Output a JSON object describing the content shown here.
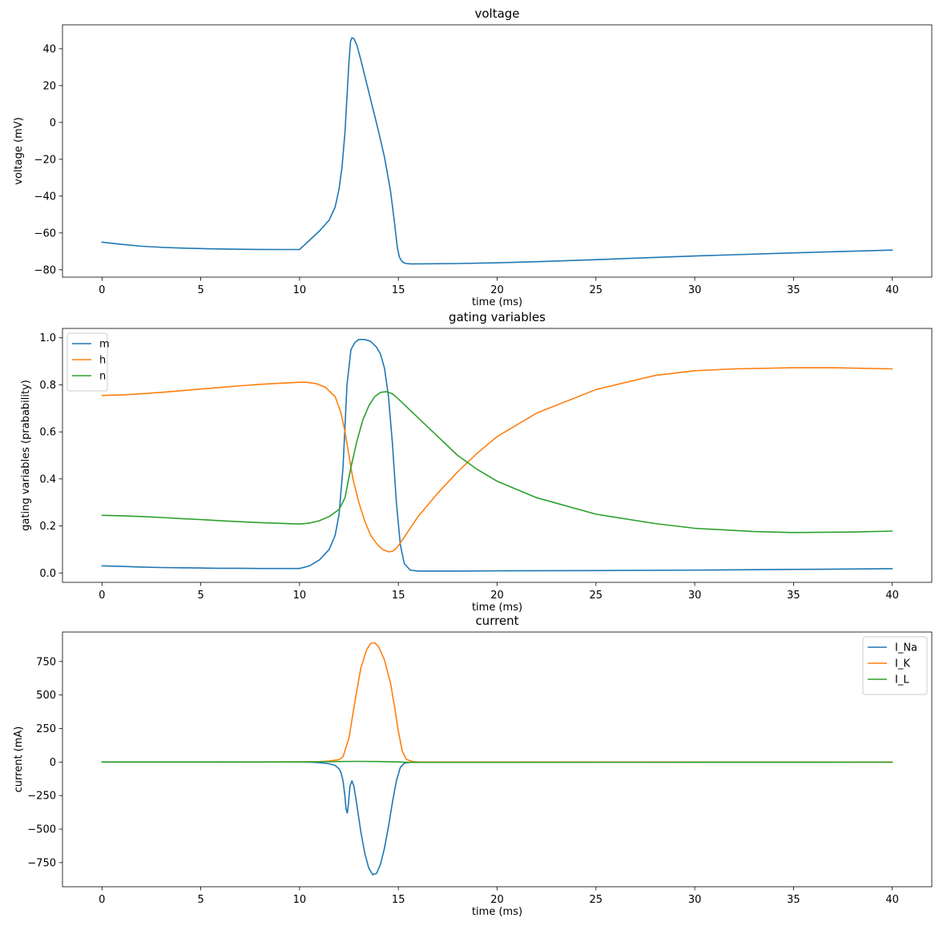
{
  "colors": {
    "blue": "#1f77b4",
    "orange": "#ff7f0e",
    "green": "#2ca02c"
  },
  "chart_data": [
    {
      "type": "line",
      "title": "voltage",
      "xlabel": "time (ms)",
      "ylabel": "voltage (mV)",
      "xlim": [
        -2,
        42
      ],
      "ylim": [
        -84,
        53
      ],
      "xticks": [
        0,
        5,
        10,
        15,
        20,
        25,
        30,
        35,
        40
      ],
      "xtick_labels": [
        "0",
        "5",
        "10",
        "15",
        "20",
        "25",
        "30",
        "35",
        "40"
      ],
      "yticks": [
        -80,
        -60,
        -40,
        -20,
        0,
        20,
        40
      ],
      "ytick_labels": [
        "−80",
        "−60",
        "−40",
        "−20",
        "0",
        "20",
        "40"
      ],
      "legend": null,
      "series": [
        {
          "color": "#1f77b4",
          "x": [
            0,
            1,
            2,
            3,
            4,
            5,
            6,
            7,
            8,
            9,
            10,
            10.5,
            11,
            11.5,
            11.8,
            12.0,
            12.15,
            12.3,
            12.4,
            12.5,
            12.58,
            12.65,
            12.75,
            12.9,
            13.1,
            13.4,
            13.7,
            14.0,
            14.3,
            14.6,
            14.8,
            14.95,
            15.05,
            15.15,
            15.25,
            15.4,
            15.6,
            16,
            18,
            20,
            22,
            25,
            30,
            35,
            40
          ],
          "y": [
            -65,
            -66.2,
            -67.2,
            -67.8,
            -68.2,
            -68.5,
            -68.7,
            -68.85,
            -68.95,
            -69.0,
            -69.0,
            -64,
            -59,
            -53,
            -46,
            -36,
            -24,
            -5,
            14,
            33,
            44,
            46,
            45.5,
            42,
            34,
            21,
            8,
            -5,
            -19,
            -37,
            -54,
            -68,
            -73,
            -75,
            -76,
            -76.6,
            -76.8,
            -76.8,
            -76.6,
            -76.2,
            -75.6,
            -74.5,
            -72.5,
            -70.8,
            -69.3
          ]
        }
      ]
    },
    {
      "type": "line",
      "title": "gating variables",
      "xlabel": "time (ms)",
      "ylabel": "gating variables (prabability)",
      "xlim": [
        -2,
        42
      ],
      "ylim": [
        -0.04,
        1.04
      ],
      "xticks": [
        0,
        5,
        10,
        15,
        20,
        25,
        30,
        35,
        40
      ],
      "xtick_labels": [
        "0",
        "5",
        "10",
        "15",
        "20",
        "25",
        "30",
        "35",
        "40"
      ],
      "yticks": [
        0.0,
        0.2,
        0.4,
        0.6,
        0.8,
        1.0
      ],
      "ytick_labels": [
        "0.0",
        "0.2",
        "0.4",
        "0.6",
        "0.8",
        "1.0"
      ],
      "legend": "upper-left",
      "series": [
        {
          "name": "m",
          "color": "#1f77b4",
          "x": [
            0,
            1,
            2,
            3,
            4,
            5,
            6,
            7,
            8,
            9,
            10,
            10.5,
            11,
            11.5,
            11.8,
            12.0,
            12.2,
            12.4,
            12.6,
            12.8,
            13.0,
            13.3,
            13.6,
            13.9,
            14.1,
            14.3,
            14.5,
            14.7,
            14.9,
            15.1,
            15.3,
            15.6,
            16,
            18,
            20,
            25,
            30,
            35,
            40
          ],
          "y": [
            0.03,
            0.028,
            0.025,
            0.023,
            0.022,
            0.021,
            0.02,
            0.02,
            0.019,
            0.019,
            0.019,
            0.03,
            0.055,
            0.1,
            0.16,
            0.25,
            0.45,
            0.8,
            0.95,
            0.98,
            0.993,
            0.993,
            0.985,
            0.96,
            0.93,
            0.87,
            0.75,
            0.55,
            0.3,
            0.12,
            0.04,
            0.012,
            0.008,
            0.008,
            0.009,
            0.01,
            0.012,
            0.015,
            0.018
          ]
        },
        {
          "name": "h",
          "color": "#ff7f0e",
          "x": [
            0,
            1,
            2,
            3,
            4,
            5,
            6,
            7,
            8,
            9,
            10,
            10.3,
            10.8,
            11.3,
            11.8,
            12.1,
            12.3,
            12.5,
            12.7,
            13.0,
            13.3,
            13.6,
            13.9,
            14.2,
            14.5,
            14.7,
            14.9,
            15.2,
            15.6,
            16,
            17,
            18,
            19,
            20,
            22,
            25,
            28,
            30,
            32,
            35,
            37,
            40
          ],
          "y": [
            0.755,
            0.757,
            0.762,
            0.768,
            0.775,
            0.782,
            0.789,
            0.796,
            0.802,
            0.807,
            0.811,
            0.811,
            0.806,
            0.79,
            0.75,
            0.68,
            0.6,
            0.5,
            0.4,
            0.3,
            0.22,
            0.16,
            0.125,
            0.1,
            0.09,
            0.092,
            0.105,
            0.14,
            0.19,
            0.24,
            0.34,
            0.43,
            0.51,
            0.58,
            0.68,
            0.78,
            0.84,
            0.86,
            0.868,
            0.873,
            0.873,
            0.868
          ]
        },
        {
          "name": "n",
          "color": "#2ca02c",
          "x": [
            0,
            1,
            2,
            3,
            4,
            5,
            6,
            7,
            8,
            9,
            10,
            10.5,
            11,
            11.5,
            12.0,
            12.3,
            12.6,
            12.9,
            13.2,
            13.5,
            13.8,
            14.1,
            14.4,
            14.7,
            15.0,
            15.5,
            16,
            17,
            18,
            19,
            20,
            22,
            25,
            28,
            30,
            33,
            35,
            38,
            40
          ],
          "y": [
            0.245,
            0.243,
            0.24,
            0.236,
            0.231,
            0.227,
            0.222,
            0.218,
            0.214,
            0.211,
            0.208,
            0.212,
            0.222,
            0.24,
            0.27,
            0.32,
            0.45,
            0.56,
            0.65,
            0.71,
            0.75,
            0.768,
            0.771,
            0.762,
            0.74,
            0.7,
            0.66,
            0.58,
            0.5,
            0.44,
            0.39,
            0.32,
            0.25,
            0.21,
            0.19,
            0.176,
            0.172,
            0.174,
            0.178
          ]
        }
      ]
    },
    {
      "type": "line",
      "title": "current",
      "xlabel": "time (ms)",
      "ylabel": "current (mA)",
      "xlim": [
        -2,
        42
      ],
      "ylim": [
        -930,
        970
      ],
      "xticks": [
        0,
        5,
        10,
        15,
        20,
        25,
        30,
        35,
        40
      ],
      "xtick_labels": [
        "0",
        "5",
        "10",
        "15",
        "20",
        "25",
        "30",
        "35",
        "40"
      ],
      "yticks": [
        -750,
        -500,
        -250,
        0,
        250,
        500,
        750
      ],
      "ytick_labels": [
        "−750",
        "−500",
        "−250",
        "0",
        "250",
        "500",
        "750"
      ],
      "legend": "upper-right",
      "series": [
        {
          "name": "I_Na",
          "color": "#1f77b4",
          "x": [
            0,
            5,
            10,
            10.5,
            11,
            11.5,
            11.8,
            12.0,
            12.1,
            12.2,
            12.3,
            12.35,
            12.42,
            12.48,
            12.55,
            12.65,
            12.75,
            12.9,
            13.1,
            13.3,
            13.5,
            13.7,
            13.9,
            14.1,
            14.3,
            14.5,
            14.7,
            14.9,
            15.1,
            15.3,
            15.6,
            16,
            20,
            25,
            30,
            35,
            40
          ],
          "y": [
            0,
            0,
            0,
            -1,
            -4,
            -12,
            -25,
            -50,
            -80,
            -140,
            -260,
            -350,
            -380,
            -300,
            -180,
            -140,
            -180,
            -320,
            -520,
            -680,
            -790,
            -840,
            -830,
            -760,
            -640,
            -480,
            -300,
            -140,
            -40,
            -8,
            -2,
            0,
            0,
            0,
            0,
            0,
            0
          ]
        },
        {
          "name": "I_K",
          "color": "#ff7f0e",
          "x": [
            0,
            5,
            10,
            11,
            11.5,
            12.0,
            12.2,
            12.5,
            12.8,
            13.1,
            13.4,
            13.6,
            13.8,
            14.0,
            14.3,
            14.6,
            14.8,
            15.0,
            15.2,
            15.4,
            15.7,
            16,
            20,
            25,
            30,
            35,
            40
          ],
          "y": [
            0,
            0,
            1,
            3,
            8,
            18,
            40,
            180,
            450,
            700,
            840,
            885,
            890,
            860,
            760,
            590,
            420,
            230,
            80,
            20,
            4,
            1,
            0,
            0,
            0,
            0,
            0
          ]
        },
        {
          "name": "I_L",
          "color": "#2ca02c",
          "x": [
            0,
            5,
            10,
            11,
            12,
            13,
            14,
            15,
            15.5,
            16,
            20,
            40
          ],
          "y": [
            1,
            1,
            1,
            2,
            4,
            5,
            4,
            1,
            -2,
            -2,
            -2,
            -1
          ]
        }
      ]
    }
  ]
}
